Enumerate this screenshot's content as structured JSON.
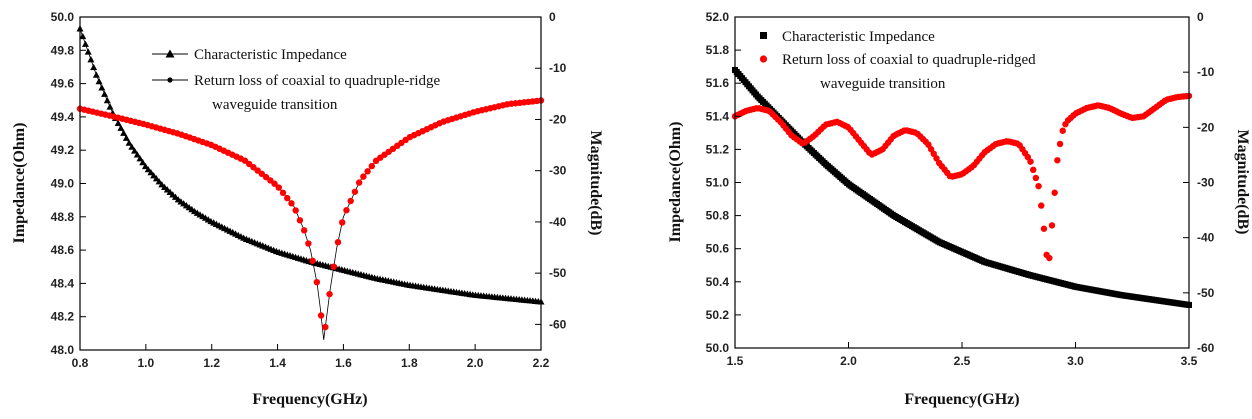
{
  "chart_data": [
    {
      "type": "line",
      "xlabel": "Frequency(GHz)",
      "ylabel": "Impedance(Ohm)",
      "y2label": "Magnitude(dB)",
      "xlim": [
        0.8,
        2.2
      ],
      "ylim": [
        48.0,
        50.0
      ],
      "y2lim": [
        -65,
        0
      ],
      "x_ticks": [
        "0.8",
        "1.0",
        "1.2",
        "1.4",
        "1.6",
        "1.8",
        "2.0",
        "2.2"
      ],
      "y_ticks": [
        "48.0",
        "48.2",
        "48.4",
        "48.6",
        "48.8",
        "49.0",
        "49.2",
        "49.4",
        "49.6",
        "49.8",
        "50.0"
      ],
      "y2_ticks": [
        "0",
        "-10",
        "-20",
        "-30",
        "-40",
        "-50",
        "-60"
      ],
      "grid": false,
      "legend_position": "top-right",
      "series": [
        {
          "name": "Characteristic Impedance",
          "axis": "left",
          "color": "#000000",
          "marker": "triangle",
          "x": [
            0.8,
            0.85,
            0.9,
            0.95,
            1.0,
            1.05,
            1.1,
            1.15,
            1.2,
            1.3,
            1.4,
            1.5,
            1.6,
            1.7,
            1.8,
            1.9,
            2.0,
            2.1,
            2.2
          ],
          "y": [
            49.93,
            49.65,
            49.42,
            49.24,
            49.1,
            48.99,
            48.9,
            48.83,
            48.77,
            48.67,
            48.59,
            48.53,
            48.48,
            48.43,
            48.39,
            48.36,
            48.33,
            48.31,
            48.29
          ]
        },
        {
          "name": "Return loss of coaxial to quadruple-ridge waveguide transition",
          "legend_line2": "waveguide transition",
          "legend_line1": "Return loss of coaxial to quadruple-ridge",
          "axis": "right",
          "color": "#ff0000",
          "marker": "circle",
          "x": [
            0.8,
            0.9,
            1.0,
            1.1,
            1.2,
            1.3,
            1.4,
            1.45,
            1.48,
            1.5,
            1.52,
            1.53,
            1.54,
            1.55,
            1.56,
            1.58,
            1.6,
            1.65,
            1.7,
            1.8,
            1.9,
            2.0,
            2.1,
            2.2
          ],
          "y": [
            -17.9,
            -19.4,
            -21.0,
            -22.8,
            -25.0,
            -28.0,
            -33.0,
            -37.0,
            -41.5,
            -45.5,
            -52.0,
            -57.0,
            -63.0,
            -58.0,
            -53.0,
            -45.0,
            -39.0,
            -32.0,
            -28.0,
            -23.5,
            -20.5,
            -18.5,
            -17.0,
            -16.3
          ]
        }
      ]
    },
    {
      "type": "scatter",
      "xlabel": "Frequency(GHz)",
      "ylabel": "Impedance(Ohm)",
      "y2label": "Magnitude(dB)",
      "xlim": [
        1.5,
        3.5
      ],
      "ylim": [
        50.0,
        52.0
      ],
      "y2lim": [
        -60,
        0
      ],
      "x_ticks": [
        "1.5",
        "2.0",
        "2.5",
        "3.0",
        "3.5"
      ],
      "y_ticks": [
        "50.0",
        "50.2",
        "50.4",
        "50.6",
        "50.8",
        "51.0",
        "51.2",
        "51.4",
        "51.6",
        "51.8",
        "52.0"
      ],
      "y2_ticks": [
        "0",
        "-10",
        "-20",
        "-30",
        "-40",
        "-50",
        "-60"
      ],
      "grid": false,
      "legend_position": "top-left",
      "series": [
        {
          "name": "Characteristic Impedance",
          "axis": "left",
          "color": "#000000",
          "marker": "square",
          "x": [
            1.5,
            1.6,
            1.7,
            1.8,
            1.9,
            2.0,
            2.2,
            2.4,
            2.6,
            2.8,
            3.0,
            3.2,
            3.4,
            3.5
          ],
          "y": [
            51.68,
            51.52,
            51.38,
            51.24,
            51.11,
            50.99,
            50.8,
            50.64,
            50.52,
            50.44,
            50.37,
            50.32,
            50.28,
            50.26
          ]
        },
        {
          "name": "Return loss of coaxial to quadruple-ridged waveguide transition",
          "legend_line1": "Return loss of coaxial to quadruple-ridged",
          "legend_line2": "waveguide transition",
          "axis": "right",
          "color": "#ff0000",
          "marker": "circle",
          "x": [
            1.5,
            1.55,
            1.6,
            1.65,
            1.7,
            1.75,
            1.8,
            1.85,
            1.9,
            1.95,
            2.0,
            2.05,
            2.1,
            2.15,
            2.2,
            2.25,
            2.3,
            2.35,
            2.4,
            2.45,
            2.5,
            2.55,
            2.6,
            2.65,
            2.7,
            2.75,
            2.8,
            2.84,
            2.86,
            2.88,
            2.9,
            2.92,
            2.94,
            2.96,
            3.0,
            3.05,
            3.1,
            3.15,
            3.2,
            3.25,
            3.3,
            3.35,
            3.4,
            3.45,
            3.5
          ],
          "y": [
            -18.0,
            -17.0,
            -16.5,
            -17.0,
            -19.0,
            -21.5,
            -23.0,
            -21.5,
            -19.5,
            -19.0,
            -20.0,
            -22.5,
            -25.0,
            -24.0,
            -21.5,
            -20.5,
            -21.0,
            -23.0,
            -26.5,
            -29.0,
            -28.5,
            -27.0,
            -24.5,
            -23.0,
            -22.5,
            -23.0,
            -26.0,
            -31.0,
            -38.0,
            -46.0,
            -36.0,
            -26.0,
            -21.0,
            -19.0,
            -17.5,
            -16.5,
            -16.0,
            -16.5,
            -17.5,
            -18.3,
            -18.0,
            -16.5,
            -15.0,
            -14.5,
            -14.3
          ]
        }
      ]
    }
  ]
}
